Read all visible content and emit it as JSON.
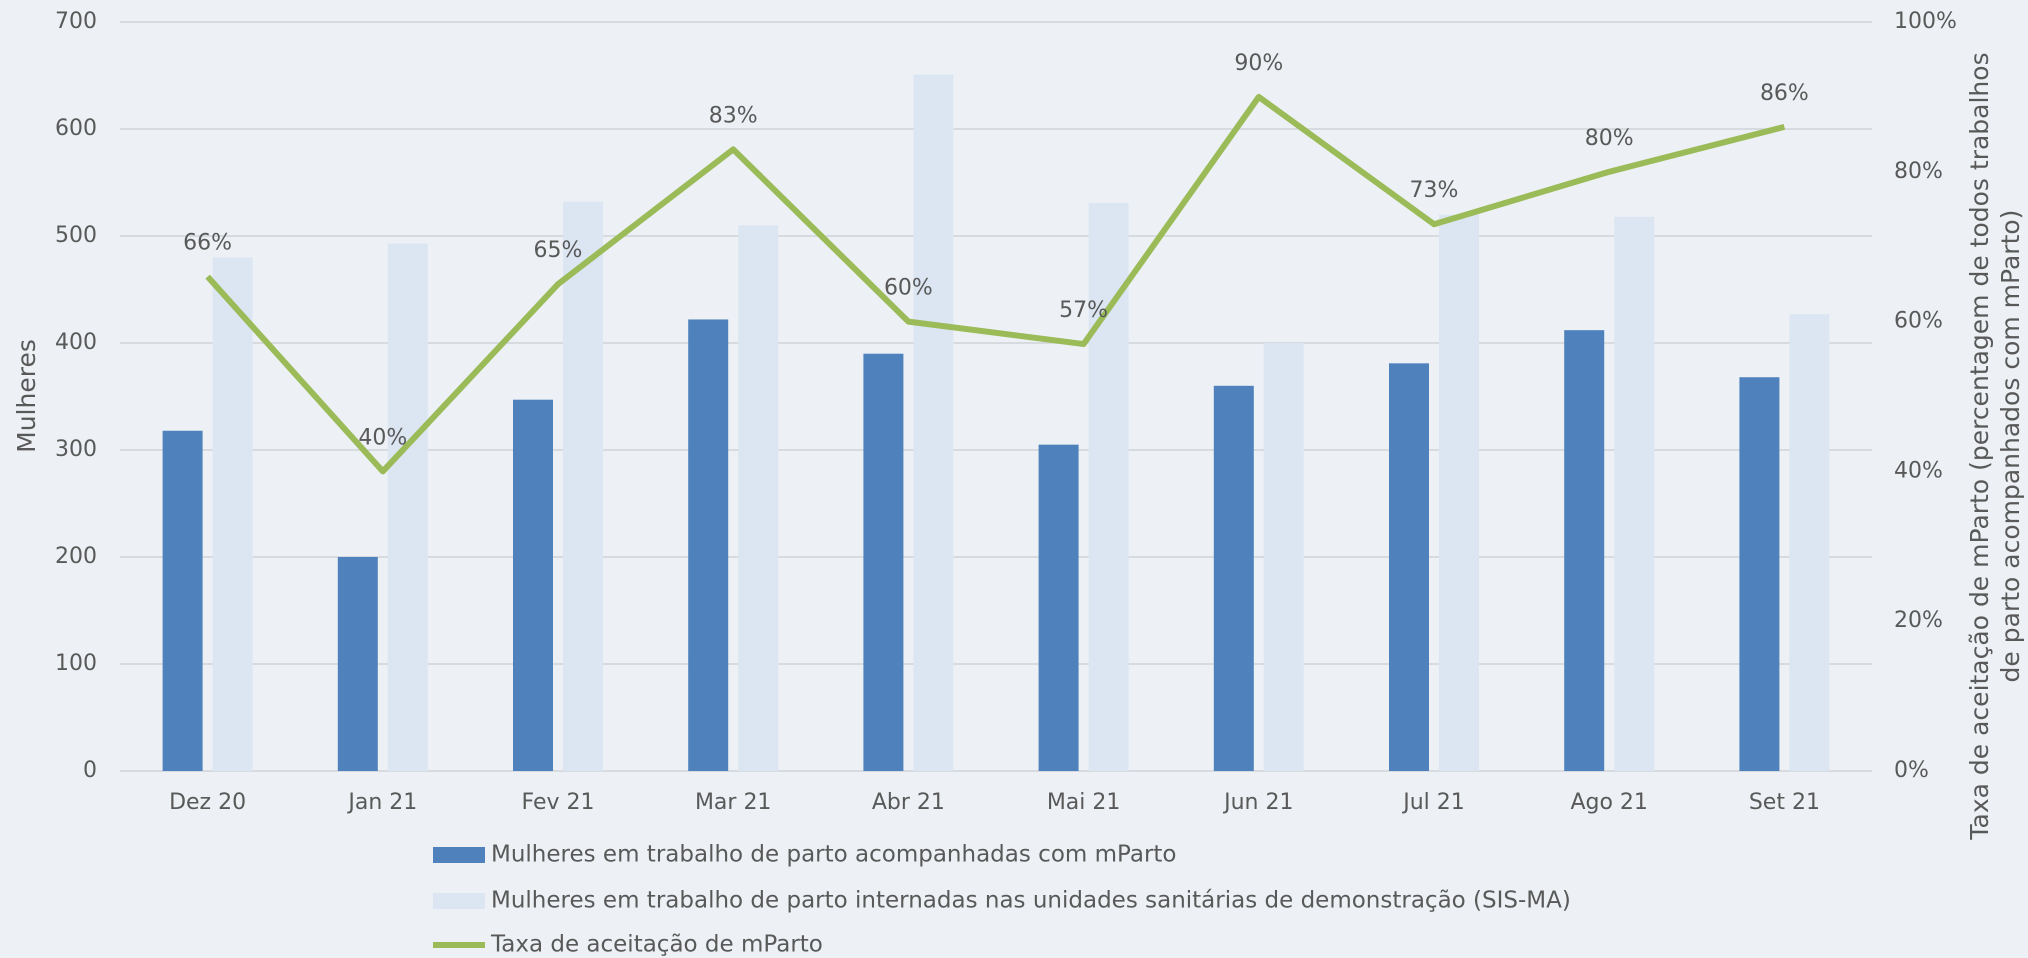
{
  "chart_data": {
    "type": "bar_line",
    "ylabel": "Mulheres",
    "y2label": [
      "Taxa de aceitação de mParto (percentagem de todos trabalhos",
      "de parto acompanhados com mParto)"
    ],
    "categories": [
      "Dez 20",
      "Jan 21",
      "Fev 21",
      "Mar 21",
      "Abr 21",
      "Mai 21",
      "Jun 21",
      "Jul 21",
      "Ago 21",
      "Set 21"
    ],
    "series": [
      {
        "name": "Mulheres em trabalho de parto acompanhadas com mParto",
        "color": "#4f81bd",
        "type": "bar",
        "values": [
          318,
          200,
          347,
          422,
          390,
          305,
          360,
          381,
          412,
          368
        ]
      },
      {
        "name": "Mulheres em trabalho de parto internadas nas unidades sanitárias de demonstração (SIS-MA)",
        "color": "#dce6f2",
        "type": "bar",
        "values": [
          480,
          493,
          532,
          510,
          651,
          531,
          400,
          520,
          518,
          427
        ]
      },
      {
        "name": "Taxa de aceitação de mParto",
        "color": "#9bbb59",
        "type": "line",
        "axis": "y2",
        "values": [
          66,
          40,
          65,
          83,
          60,
          57,
          90,
          73,
          80,
          86
        ],
        "value_labels": [
          "66%",
          "40%",
          "65%",
          "83%",
          "60%",
          "57%",
          "90%",
          "73%",
          "80%",
          "86%"
        ]
      }
    ],
    "ylim": [
      0,
      700
    ],
    "yticks": [
      0,
      100,
      200,
      300,
      400,
      500,
      600,
      700
    ],
    "y2lim": [
      0,
      100
    ],
    "y2ticks": [
      {
        "value": 0,
        "label": "0%"
      },
      {
        "value": 20,
        "label": "20%"
      },
      {
        "value": 40,
        "label": "40%"
      },
      {
        "value": 60,
        "label": "60%"
      },
      {
        "value": 80,
        "label": "80%"
      },
      {
        "value": 100,
        "label": "100%"
      }
    ],
    "grid": true,
    "legend": "bottom"
  }
}
